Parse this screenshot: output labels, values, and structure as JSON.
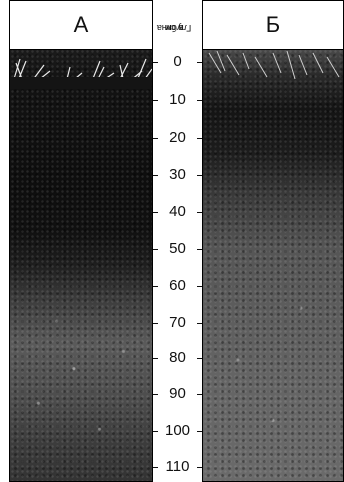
{
  "panels": {
    "a": {
      "label": "А"
    },
    "b": {
      "label": "Б"
    }
  },
  "depth_scale": {
    "title_line1": "Глубина",
    "title_line2": "в см",
    "ticks": [
      "0",
      "10",
      "20",
      "30",
      "40",
      "50",
      "60",
      "70",
      "80",
      "90",
      "100",
      "110"
    ]
  }
}
